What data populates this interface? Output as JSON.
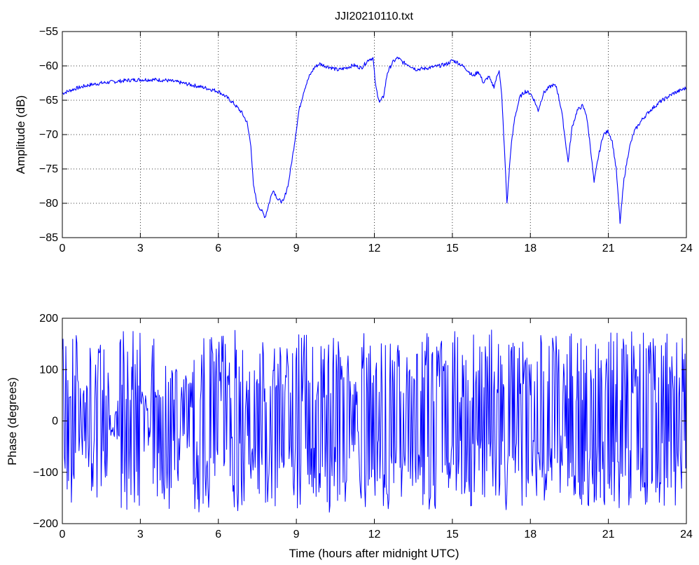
{
  "chart_data": [
    {
      "type": "line",
      "title": "JJI20210110.txt",
      "xlabel": "",
      "ylabel": "Amplitude (dB)",
      "xlim": [
        0,
        24
      ],
      "ylim": [
        -85,
        -55
      ],
      "xticks": [
        0,
        3,
        6,
        9,
        12,
        15,
        18,
        21,
        24
      ],
      "xtick_labels": [
        "0",
        "3",
        "6",
        "9",
        "12",
        "15",
        "18",
        "21",
        "24"
      ],
      "yticks": [
        -85,
        -80,
        -75,
        -70,
        -65,
        -60,
        -55
      ],
      "ytick_labels": [
        "−85",
        "−80",
        "−75",
        "−70",
        "−65",
        "−60",
        "−55"
      ],
      "grid": true,
      "color": "#0000ff",
      "series": [
        {
          "x": [
            0,
            0.5,
            1,
            1.5,
            2,
            2.5,
            3,
            3.5,
            4,
            4.5,
            5,
            5.5,
            6,
            6.3,
            6.6,
            6.9,
            7.1,
            7.25,
            7.35,
            7.5,
            7.65,
            7.8,
            7.95,
            8.1,
            8.3,
            8.5,
            8.7,
            8.9,
            9.1,
            9.3,
            9.5,
            9.7,
            9.9,
            10.1,
            10.3,
            10.6,
            10.9,
            11.2,
            11.5,
            11.8,
            11.95,
            12.05,
            12.2,
            12.35,
            12.5,
            12.7,
            12.9,
            13.1,
            13.3,
            13.6,
            13.9,
            14.2,
            14.5,
            14.8,
            15.0,
            15.2,
            15.5,
            15.8,
            16.0,
            16.2,
            16.4,
            16.5,
            16.6,
            16.8,
            16.9,
            17.0,
            17.1,
            17.25,
            17.4,
            17.6,
            17.8,
            18.0,
            18.15,
            18.3,
            18.5,
            18.7,
            18.85,
            19.0,
            19.2,
            19.35,
            19.45,
            19.6,
            19.8,
            20.0,
            20.15,
            20.3,
            20.45,
            20.6,
            20.8,
            21.0,
            21.15,
            21.3,
            21.45,
            21.6,
            21.8,
            22.0,
            22.3,
            22.6,
            23.0,
            23.5,
            24.0
          ],
          "y": [
            -64,
            -63.3,
            -62.8,
            -62.5,
            -62.3,
            -62.1,
            -62.0,
            -62.0,
            -62.1,
            -62.4,
            -62.8,
            -63.2,
            -63.7,
            -64.5,
            -65.5,
            -66.8,
            -68.2,
            -71.5,
            -77.5,
            -80.2,
            -81.0,
            -82.0,
            -80.0,
            -78.0,
            -79.5,
            -79.8,
            -77.0,
            -72.0,
            -66.5,
            -63.5,
            -61.5,
            -60.2,
            -59.7,
            -60.0,
            -60.2,
            -60.6,
            -60.3,
            -59.9,
            -60.3,
            -59.0,
            -58.9,
            -63.0,
            -65.3,
            -64.5,
            -61.0,
            -59.5,
            -58.8,
            -59.5,
            -59.8,
            -60.5,
            -60.4,
            -60.2,
            -60.0,
            -59.7,
            -59.2,
            -59.5,
            -60.3,
            -61.5,
            -60.8,
            -62.5,
            -61.5,
            -62.5,
            -63.0,
            -60.5,
            -64.5,
            -72.0,
            -80.0,
            -72.0,
            -67.5,
            -64.5,
            -63.7,
            -64.0,
            -65.0,
            -66.5,
            -64.0,
            -63.2,
            -62.8,
            -63.0,
            -66.5,
            -71.0,
            -74.0,
            -69.0,
            -66.5,
            -65.8,
            -67.0,
            -71.5,
            -77.0,
            -73.5,
            -70.0,
            -69.5,
            -71.0,
            -75.0,
            -82.8,
            -76.5,
            -72.0,
            -69.5,
            -67.8,
            -66.5,
            -65.2,
            -64.0,
            -63.2
          ]
        }
      ]
    },
    {
      "type": "line",
      "title": "",
      "xlabel": "Time (hours after midnight UTC)",
      "ylabel": "Phase (degrees)",
      "xlim": [
        0,
        24
      ],
      "ylim": [
        -200,
        200
      ],
      "xticks": [
        0,
        3,
        6,
        9,
        12,
        15,
        18,
        21,
        24
      ],
      "xtick_labels": [
        "0",
        "3",
        "6",
        "9",
        "12",
        "15",
        "18",
        "21",
        "24"
      ],
      "yticks": [
        -200,
        -100,
        0,
        100,
        200
      ],
      "ytick_labels": [
        "−200",
        "−100",
        "0",
        "100",
        "200"
      ],
      "grid": false,
      "color": "#0000ff",
      "series": [
        {
          "x": [
            0,
            0.4,
            0.8,
            1.2,
            1.6,
            2.0,
            2.4,
            2.8,
            3.2,
            3.6,
            4.0,
            4.4,
            4.8,
            5.2,
            5.6,
            6.0,
            6.4,
            6.8,
            7.2,
            7.6,
            8.0,
            8.4,
            8.8,
            9.2,
            9.6,
            10.0,
            10.4,
            10.8,
            11.2,
            11.6,
            12.0,
            12.4,
            12.8,
            13.2,
            13.6,
            14.0,
            14.4,
            14.8,
            15.2,
            15.6,
            16.0,
            16.4,
            16.8,
            17.2,
            17.6,
            18.0,
            18.4,
            18.8,
            19.2,
            19.6,
            20.0,
            20.4,
            20.8,
            21.2,
            21.6,
            22.0,
            22.4,
            22.8,
            23.2,
            23.6,
            24.0
          ],
          "y": [
            175,
            -170,
            80,
            -150,
            170,
            40,
            -175,
            175,
            -60,
            160,
            -178,
            120,
            -100,
            178,
            -176,
            170,
            -150,
            178,
            -120,
            160,
            -176,
            150,
            -176,
            178,
            -160,
            175,
            -178,
            170,
            -90,
            178,
            175,
            -176,
            170,
            -178,
            160,
            -176,
            178,
            -150,
            175,
            -178,
            170,
            -178,
            178,
            -176,
            170,
            -160,
            178,
            -178,
            140,
            -176,
            178,
            -170,
            178,
            -175,
            176,
            -178,
            178,
            -170,
            178,
            -176,
            170
          ]
        }
      ]
    }
  ]
}
